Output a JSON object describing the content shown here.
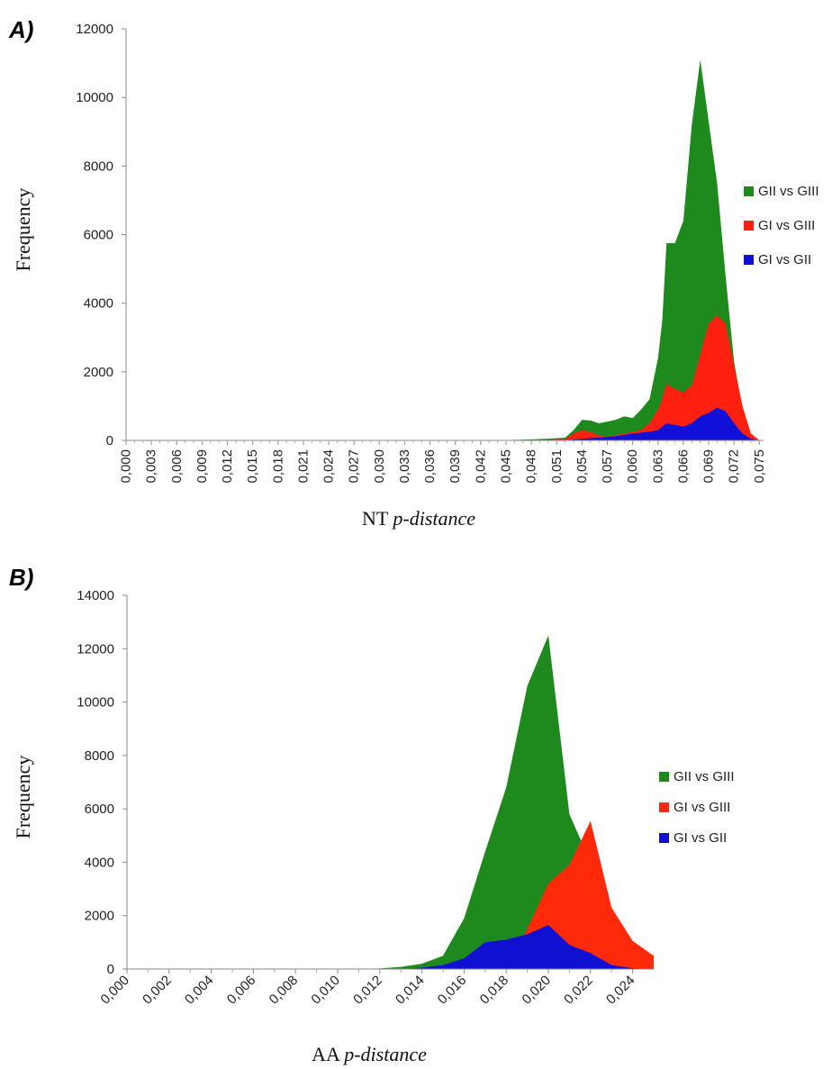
{
  "chart_data": [
    {
      "panel_label": "A)",
      "type": "area",
      "stacked": false,
      "xlabel": "NT",
      "xlabel_italic": "p-distance",
      "ylabel": "Frequency",
      "ylim": [
        0,
        12000
      ],
      "yticks": [
        "0",
        "2000",
        "4000",
        "6000",
        "8000",
        "10000",
        "12000"
      ],
      "xlim": [
        0,
        0.0755
      ],
      "xtick_labels": [
        "0,000",
        "0,003",
        "0,006",
        "0,009",
        "0,012",
        "0,015",
        "0,018",
        "0,021",
        "0,024",
        "0,027",
        "0,030",
        "0,033",
        "0,036",
        "0,039",
        "0,042",
        "0,045",
        "0,048",
        "0,051",
        "0,054",
        "0,057",
        "0,060",
        "0,063",
        "0,066",
        "0,069",
        "0,072",
        "0,075"
      ],
      "grid": false,
      "legend_position": "right",
      "series": [
        {
          "name": "GII vs GIII",
          "color": "#1e8a1e",
          "points": [
            [
              0,
              0
            ],
            [
              0.042,
              0
            ],
            [
              0.045,
              10
            ],
            [
              0.048,
              30
            ],
            [
              0.05,
              50
            ],
            [
              0.052,
              80
            ],
            [
              0.053,
              300
            ],
            [
              0.054,
              600
            ],
            [
              0.055,
              580
            ],
            [
              0.056,
              500
            ],
            [
              0.057,
              550
            ],
            [
              0.058,
              600
            ],
            [
              0.059,
              700
            ],
            [
              0.06,
              650
            ],
            [
              0.061,
              900
            ],
            [
              0.062,
              1200
            ],
            [
              0.063,
              2400
            ],
            [
              0.0635,
              3500
            ],
            [
              0.064,
              5750
            ],
            [
              0.065,
              5750
            ],
            [
              0.066,
              6400
            ],
            [
              0.067,
              9200
            ],
            [
              0.068,
              11100
            ],
            [
              0.069,
              9300
            ],
            [
              0.07,
              7500
            ],
            [
              0.071,
              4800
            ],
            [
              0.072,
              2300
            ],
            [
              0.073,
              900
            ],
            [
              0.074,
              200
            ],
            [
              0.075,
              0
            ]
          ]
        },
        {
          "name": "GI vs GIII",
          "color": "#ff2010",
          "points": [
            [
              0,
              0
            ],
            [
              0.05,
              0
            ],
            [
              0.052,
              50
            ],
            [
              0.053,
              200
            ],
            [
              0.054,
              300
            ],
            [
              0.055,
              250
            ],
            [
              0.056,
              150
            ],
            [
              0.057,
              100
            ],
            [
              0.058,
              150
            ],
            [
              0.059,
              200
            ],
            [
              0.06,
              250
            ],
            [
              0.061,
              300
            ],
            [
              0.062,
              500
            ],
            [
              0.063,
              900
            ],
            [
              0.0635,
              1200
            ],
            [
              0.064,
              1650
            ],
            [
              0.065,
              1500
            ],
            [
              0.066,
              1400
            ],
            [
              0.067,
              1600
            ],
            [
              0.068,
              2500
            ],
            [
              0.069,
              3400
            ],
            [
              0.07,
              3650
            ],
            [
              0.071,
              3400
            ],
            [
              0.072,
              2200
            ],
            [
              0.073,
              1000
            ],
            [
              0.074,
              200
            ],
            [
              0.075,
              0
            ]
          ]
        },
        {
          "name": "GI vs GII",
          "color": "#1010d8",
          "points": [
            [
              0,
              0
            ],
            [
              0.052,
              0
            ],
            [
              0.054,
              50
            ],
            [
              0.056,
              80
            ],
            [
              0.058,
              120
            ],
            [
              0.06,
              200
            ],
            [
              0.062,
              250
            ],
            [
              0.063,
              300
            ],
            [
              0.064,
              500
            ],
            [
              0.065,
              450
            ],
            [
              0.066,
              400
            ],
            [
              0.067,
              500
            ],
            [
              0.068,
              700
            ],
            [
              0.069,
              800
            ],
            [
              0.07,
              950
            ],
            [
              0.071,
              850
            ],
            [
              0.072,
              500
            ],
            [
              0.073,
              200
            ],
            [
              0.074,
              50
            ],
            [
              0.075,
              0
            ]
          ]
        }
      ]
    },
    {
      "panel_label": "B)",
      "type": "area",
      "stacked": false,
      "xlabel": "AA",
      "xlabel_italic": "p-distance",
      "ylabel": "Frequency",
      "ylim": [
        0,
        14000
      ],
      "yticks": [
        "0",
        "2000",
        "4000",
        "6000",
        "8000",
        "10000",
        "12000",
        "14000"
      ],
      "xlim": [
        0,
        0.025
      ],
      "xtick_labels": [
        "0,000",
        "0,002",
        "0,004",
        "0,006",
        "0,008",
        "0,010",
        "0,012",
        "0,014",
        "0,016",
        "0,018",
        "0,020",
        "0,022",
        "0,024"
      ],
      "grid": false,
      "legend_position": "right",
      "series": [
        {
          "name": "GII vs GIII",
          "color": "#1e8a1e",
          "points": [
            [
              0,
              0
            ],
            [
              0.011,
              0
            ],
            [
              0.012,
              20
            ],
            [
              0.013,
              80
            ],
            [
              0.014,
              200
            ],
            [
              0.015,
              500
            ],
            [
              0.016,
              1900
            ],
            [
              0.017,
              4400
            ],
            [
              0.018,
              6800
            ],
            [
              0.019,
              10600
            ],
            [
              0.02,
              12500
            ],
            [
              0.021,
              5800
            ],
            [
              0.022,
              4000
            ],
            [
              0.023,
              1000
            ],
            [
              0.024,
              200
            ],
            [
              0.025,
              0
            ]
          ]
        },
        {
          "name": "GI vs GIII",
          "color": "#ff2a0a",
          "points": [
            [
              0,
              0
            ],
            [
              0.018,
              0
            ],
            [
              0.019,
              1500
            ],
            [
              0.02,
              3200
            ],
            [
              0.021,
              3900
            ],
            [
              0.022,
              5550
            ],
            [
              0.023,
              2300
            ],
            [
              0.024,
              1050
            ],
            [
              0.025,
              500
            ]
          ]
        },
        {
          "name": "GI vs GII",
          "color": "#1010d0",
          "points": [
            [
              0,
              0
            ],
            [
              0.013,
              0
            ],
            [
              0.014,
              50
            ],
            [
              0.015,
              150
            ],
            [
              0.016,
              400
            ],
            [
              0.017,
              1000
            ],
            [
              0.018,
              1100
            ],
            [
              0.019,
              1300
            ],
            [
              0.02,
              1650
            ],
            [
              0.021,
              900
            ],
            [
              0.022,
              600
            ],
            [
              0.023,
              150
            ],
            [
              0.024,
              30
            ],
            [
              0.025,
              0
            ]
          ]
        }
      ]
    }
  ]
}
